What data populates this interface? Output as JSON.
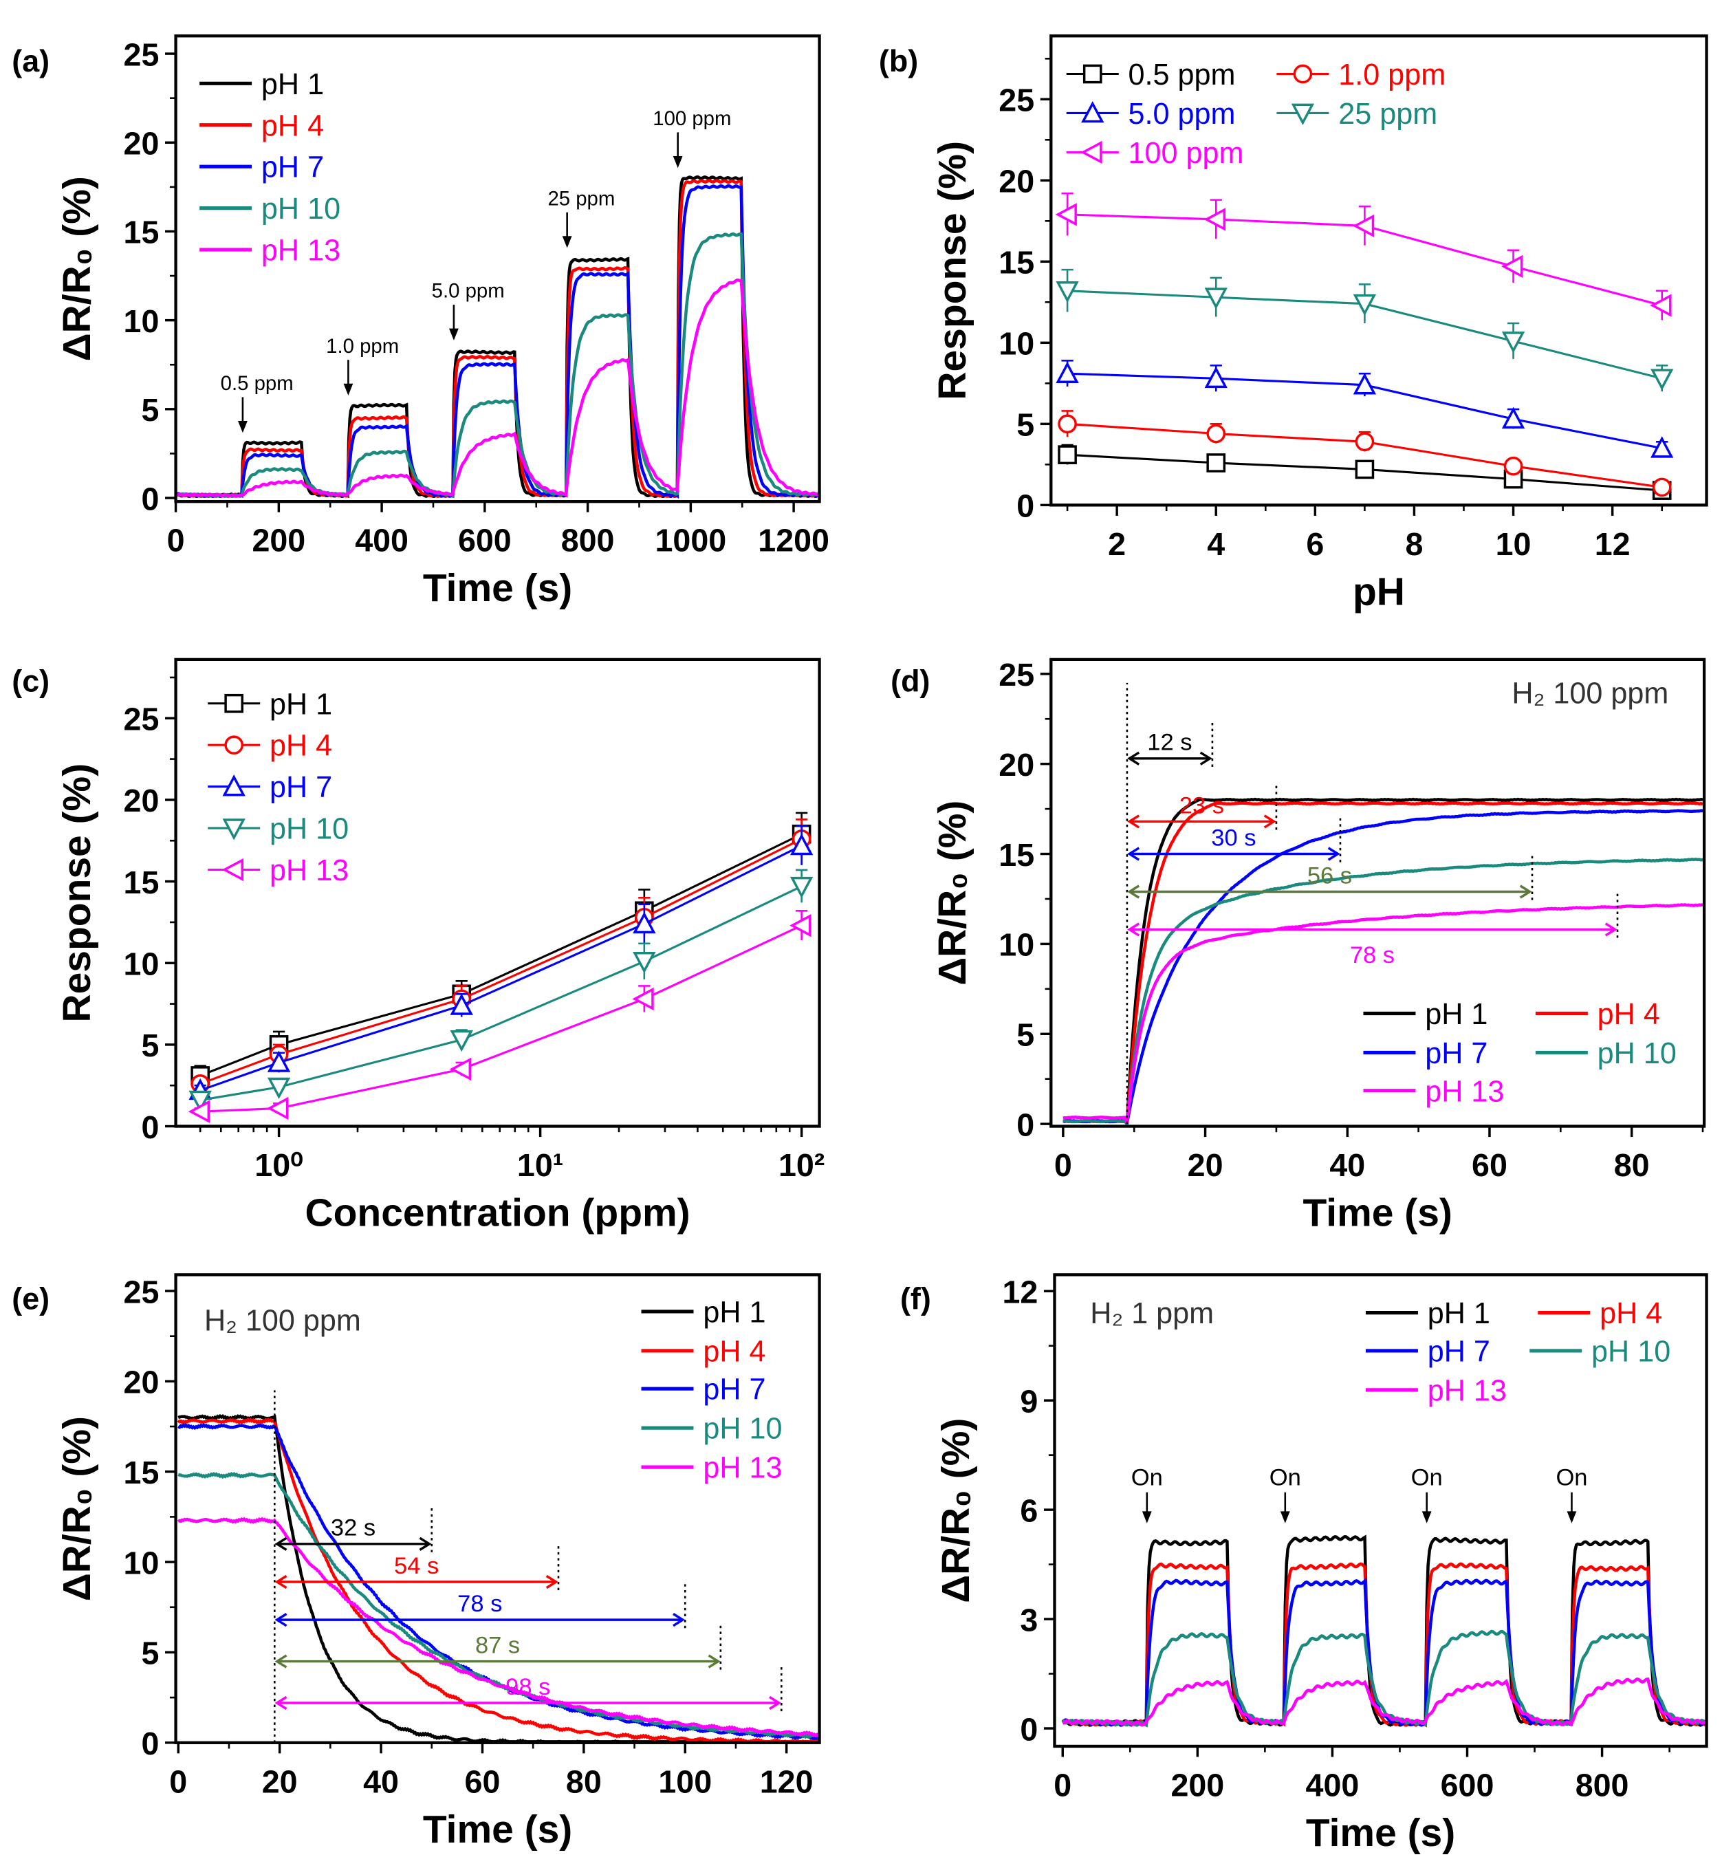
{
  "colors": {
    "pH 1": "#000000",
    "pH 4": "#ff0000",
    "pH 7": "#0000ff",
    "pH 10": "#1a8a7e",
    "pH 13": "#ff00ff",
    "olive": "#5b7a3a"
  },
  "chart_data": [
    {
      "panel": "(a)",
      "type": "line",
      "xlabel": "Time (s)",
      "ylabel": "ΔR/R₀ (%)",
      "xlim": [
        0,
        1250
      ],
      "ylim": [
        -0.2,
        26
      ],
      "xticks": [
        0,
        200,
        400,
        600,
        800,
        1000,
        1200
      ],
      "xtick_labels": [
        "0",
        "200",
        "400",
        "600",
        "800",
        "1000",
        "1200"
      ],
      "yticks": [
        0,
        5,
        10,
        15,
        20,
        25
      ],
      "ytick_labels": [
        "0",
        "5",
        "10",
        "15",
        "20",
        "25"
      ],
      "pulses": {
        "on": [
          130,
          335,
          540,
          760,
          975
        ],
        "off": [
          245,
          450,
          660,
          880,
          1100
        ]
      },
      "series": [
        {
          "name": "pH 1",
          "color": "#000000",
          "levels": [
            3.1,
            5.2,
            8.2,
            13.4,
            18.0
          ]
        },
        {
          "name": "pH 4",
          "color": "#ff0000",
          "levels": [
            2.7,
            4.5,
            7.9,
            12.9,
            17.8
          ]
        },
        {
          "name": "pH 7",
          "color": "#0000ff",
          "levels": [
            2.4,
            4.0,
            7.5,
            12.6,
            17.5
          ]
        },
        {
          "name": "pH 10",
          "color": "#1a8a7e",
          "levels": [
            1.6,
            2.6,
            5.4,
            10.3,
            14.8
          ]
        },
        {
          "name": "pH 13",
          "color": "#ff00ff",
          "levels": [
            0.9,
            1.3,
            3.6,
            7.9,
            12.4
          ]
        }
      ],
      "annotations": [
        {
          "text": "0.5 ppm",
          "x": 130,
          "y": 3.4
        },
        {
          "text": "1.0 ppm",
          "x": 335,
          "y": 5.5
        },
        {
          "text": "5.0 ppm",
          "x": 540,
          "y": 8.6
        },
        {
          "text": "25 ppm",
          "x": 760,
          "y": 13.8
        },
        {
          "text": "100 ppm",
          "x": 975,
          "y": 18.3
        }
      ]
    },
    {
      "panel": "(b)",
      "type": "line",
      "xlabel": "pH",
      "ylabel": "Response (%)",
      "xlim": [
        0.67,
        13.9
      ],
      "ylim": [
        0,
        28.9
      ],
      "xticks": [
        2,
        4,
        6,
        8,
        10,
        12
      ],
      "xtick_labels": [
        "2",
        "4",
        "6",
        "8",
        "10",
        "12"
      ],
      "yticks": [
        0,
        5,
        10,
        15,
        20,
        25
      ],
      "ytick_labels": [
        "0",
        "5",
        "10",
        "15",
        "20",
        "25"
      ],
      "x": [
        1,
        4,
        7,
        10,
        13
      ],
      "series": [
        {
          "name": "0.5 ppm",
          "color": "#000000",
          "marker": "square",
          "values": [
            3.1,
            2.6,
            2.2,
            1.6,
            0.9
          ],
          "error": [
            0.6,
            0.4,
            0.3,
            0.3,
            0.2
          ]
        },
        {
          "name": "1.0 ppm",
          "color": "#ff0000",
          "marker": "circle",
          "values": [
            5.0,
            4.4,
            3.9,
            2.4,
            1.1
          ],
          "error": [
            0.8,
            0.6,
            0.6,
            0.4,
            0.3
          ]
        },
        {
          "name": "5.0 ppm",
          "color": "#0000ff",
          "marker": "triangle-up",
          "values": [
            8.1,
            7.8,
            7.4,
            5.3,
            3.5
          ],
          "error": [
            0.8,
            0.8,
            0.7,
            0.6,
            0.4
          ]
        },
        {
          "name": "25 ppm",
          "color": "#1a8a7e",
          "marker": "triangle-down",
          "values": [
            13.2,
            12.8,
            12.4,
            10.1,
            7.8
          ],
          "error": [
            1.3,
            1.2,
            1.2,
            1.1,
            0.8
          ]
        },
        {
          "name": "100 ppm",
          "color": "#ff00ff",
          "marker": "triangle-left",
          "values": [
            17.9,
            17.6,
            17.2,
            14.7,
            12.3
          ],
          "error": [
            1.3,
            1.2,
            1.2,
            1.0,
            0.9
          ]
        }
      ]
    },
    {
      "panel": "(c)",
      "type": "line",
      "xscale": "log",
      "xlabel": "Concentration (ppm)",
      "ylabel": "Response (%)",
      "xlim": [
        0.403,
        117
      ],
      "ylim": [
        0,
        28.6
      ],
      "xticks": [
        1,
        10,
        100
      ],
      "xtick_labels": [
        "10⁰",
        "10¹",
        "10²"
      ],
      "yticks": [
        0,
        5,
        10,
        15,
        20,
        25
      ],
      "ytick_labels": [
        "0",
        "5",
        "10",
        "15",
        "20",
        "25"
      ],
      "x": [
        0.5,
        1,
        5,
        25,
        100
      ],
      "series": [
        {
          "name": "pH 1",
          "color": "#000000",
          "marker": "square",
          "values": [
            3.1,
            5.0,
            8.1,
            13.2,
            17.9
          ],
          "error": [
            0.6,
            0.8,
            0.8,
            1.3,
            1.3
          ]
        },
        {
          "name": "pH 4",
          "color": "#ff0000",
          "marker": "circle",
          "values": [
            2.6,
            4.4,
            7.8,
            12.8,
            17.6
          ],
          "error": [
            0.4,
            0.6,
            0.8,
            1.2,
            1.2
          ]
        },
        {
          "name": "pH 7",
          "color": "#0000ff",
          "marker": "triangle-up",
          "values": [
            2.2,
            3.9,
            7.4,
            12.4,
            17.2
          ],
          "error": [
            0.3,
            0.6,
            0.7,
            1.2,
            1.2
          ]
        },
        {
          "name": "pH 10",
          "color": "#1a8a7e",
          "marker": "triangle-down",
          "values": [
            1.6,
            2.4,
            5.3,
            10.1,
            14.7
          ],
          "error": [
            0.3,
            0.4,
            0.6,
            1.1,
            1.0
          ]
        },
        {
          "name": "pH 13",
          "color": "#ff00ff",
          "marker": "triangle-left",
          "values": [
            0.9,
            1.1,
            3.5,
            7.8,
            12.3
          ],
          "error": [
            0.2,
            0.3,
            0.4,
            0.8,
            0.9
          ]
        }
      ]
    },
    {
      "panel": "(d)",
      "type": "line",
      "xlabel": "Time (s)",
      "ylabel": "ΔR/R₀ (%)",
      "xlim": [
        -1.7,
        90.2
      ],
      "ylim": [
        -0.13,
        25.8
      ],
      "xticks": [
        0,
        20,
        40,
        60,
        80
      ],
      "xtick_labels": [
        "0",
        "20",
        "40",
        "60",
        "80"
      ],
      "yticks": [
        0,
        5,
        10,
        15,
        20,
        25
      ],
      "ytick_labels": [
        "0",
        "5",
        "10",
        "15",
        "20",
        "25"
      ],
      "gas_on": 9,
      "title_text": "H₂ 100 ppm",
      "series": [
        {
          "name": "pH 1",
          "color": "#000000",
          "level": 18.0,
          "time": 12
        },
        {
          "name": "pH 4",
          "color": "#ff0000",
          "level": 17.8,
          "time": 23
        },
        {
          "name": "pH 7",
          "color": "#0000ff",
          "level": 17.4,
          "time": 30
        },
        {
          "name": "pH 10",
          "color": "#1a8a7e",
          "level": 14.8,
          "time": 56
        },
        {
          "name": "pH 13",
          "color": "#ff00ff",
          "level": 12.4,
          "time": 78
        }
      ],
      "arrows": [
        {
          "text": "12 s",
          "x0": 9,
          "x1": 21,
          "y": 20.3,
          "color": "#000000"
        },
        {
          "text": "23 s",
          "x0": 9,
          "x1": 30,
          "y": 16.8,
          "color": "#ff0000"
        },
        {
          "text": "30 s",
          "x0": 9,
          "x1": 39,
          "y": 15.0,
          "color": "#0000ff"
        },
        {
          "text": "56 s",
          "x0": 9,
          "x1": 66,
          "y": 12.9,
          "color": "#5b7a3a"
        },
        {
          "text": "78 s",
          "x0": 9,
          "x1": 78,
          "y": 10.8,
          "color": "#ff00ff",
          "below": true
        }
      ]
    },
    {
      "panel": "(e)",
      "type": "line",
      "xlabel": "Time (s)",
      "ylabel": "ΔR/R₀ (%)",
      "xlim": [
        -0.5,
        126.5
      ],
      "ylim": [
        0,
        25.9
      ],
      "xticks": [
        0,
        20,
        40,
        60,
        80,
        100,
        120
      ],
      "xtick_labels": [
        "0",
        "20",
        "40",
        "60",
        "80",
        "100",
        "120"
      ],
      "yticks": [
        0,
        5,
        10,
        15,
        20,
        25
      ],
      "ytick_labels": [
        "0",
        "5",
        "10",
        "15",
        "20",
        "25"
      ],
      "gas_off": 19,
      "title_text": "H₂ 100 ppm",
      "series": [
        {
          "name": "pH 1",
          "color": "#000000",
          "level": 18.0,
          "time": 32
        },
        {
          "name": "pH 4",
          "color": "#ff0000",
          "level": 17.8,
          "time": 54
        },
        {
          "name": "pH 7",
          "color": "#0000ff",
          "level": 17.5,
          "time": 78
        },
        {
          "name": "pH 10",
          "color": "#1a8a7e",
          "level": 14.8,
          "time": 87
        },
        {
          "name": "pH 13",
          "color": "#ff00ff",
          "level": 12.3,
          "time": 98
        }
      ],
      "arrows": [
        {
          "text": "32 s",
          "x0": 19,
          "x1": 50,
          "y": 11.0,
          "color": "#000000"
        },
        {
          "text": "54 s",
          "x0": 19,
          "x1": 75,
          "y": 8.9,
          "color": "#ff0000"
        },
        {
          "text": "78 s",
          "x0": 19,
          "x1": 100,
          "y": 6.8,
          "color": "#0000ff"
        },
        {
          "text": "87 s",
          "x0": 19,
          "x1": 107,
          "y": 4.5,
          "color": "#5b7a3a"
        },
        {
          "text": "98 s",
          "x0": 19,
          "x1": 119,
          "y": 2.2,
          "color": "#ff00ff"
        }
      ]
    },
    {
      "panel": "(f)",
      "type": "line",
      "xlabel": "Time (s)",
      "ylabel": "ΔR/R₀ (%)",
      "xlim": [
        -12,
        955
      ],
      "ylim": [
        -0.49,
        12.45
      ],
      "xticks": [
        0,
        200,
        400,
        600,
        800
      ],
      "xtick_labels": [
        "0",
        "200",
        "400",
        "600",
        "800"
      ],
      "yticks": [
        0,
        3,
        6,
        9,
        12
      ],
      "ytick_labels": [
        "0",
        "3",
        "6",
        "9",
        "12"
      ],
      "title_text": "H₂ 1 ppm",
      "pulses": {
        "on": [
          125,
          330,
          540,
          755
        ],
        "off": [
          245,
          450,
          660,
          870
        ]
      },
      "series": [
        {
          "name": "pH 1",
          "color": "#000000",
          "levels": [
            5.1,
            5.2,
            5.15,
            5.1
          ]
        },
        {
          "name": "pH 4",
          "color": "#ff0000",
          "levels": [
            4.45,
            4.45,
            4.45,
            4.4
          ]
        },
        {
          "name": "pH 7",
          "color": "#0000ff",
          "levels": [
            4.0,
            4.0,
            4.0,
            4.0
          ]
        },
        {
          "name": "pH 10",
          "color": "#1a8a7e",
          "levels": [
            2.55,
            2.55,
            2.6,
            2.55
          ]
        },
        {
          "name": "pH 13",
          "color": "#ff00ff",
          "levels": [
            1.25,
            1.3,
            1.25,
            1.35
          ]
        }
      ],
      "annotations": [
        {
          "text": "On",
          "x": 125,
          "y": 5.5
        },
        {
          "text": "On",
          "x": 330,
          "y": 5.5
        },
        {
          "text": "On",
          "x": 540,
          "y": 5.5
        },
        {
          "text": "On",
          "x": 755,
          "y": 5.5
        }
      ]
    }
  ]
}
